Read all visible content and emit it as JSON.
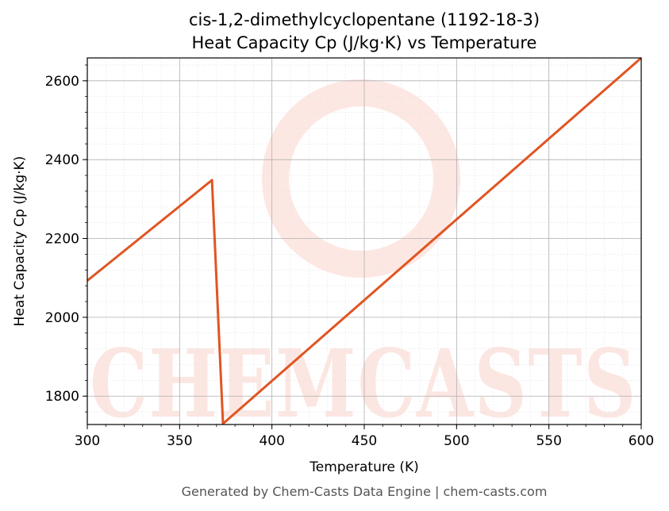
{
  "chart_data": {
    "type": "line",
    "title": "cis-1,2-dimethylcyclopentane (1192-18-3)",
    "subtitle": "Heat Capacity Cp (J/kg·K) vs Temperature",
    "xlabel": "Temperature (K)",
    "ylabel": "Heat Capacity Cp (J/kg·K)",
    "xlim": [
      300,
      600
    ],
    "ylim": [
      1728,
      2658
    ],
    "xticks": [
      300,
      350,
      400,
      450,
      500,
      550,
      600
    ],
    "yticks": [
      1800,
      2000,
      2200,
      2400,
      2600
    ],
    "grid": true,
    "series": [
      {
        "color": "#e05522",
        "x": [
          300,
          367.5,
          373.5,
          600
        ],
        "y": [
          2093,
          2348,
          1730,
          2658
        ]
      }
    ]
  },
  "footer": "Generated by Chem-Casts Data Engine | chem-casts.com",
  "watermark": "CHEMCASTS"
}
